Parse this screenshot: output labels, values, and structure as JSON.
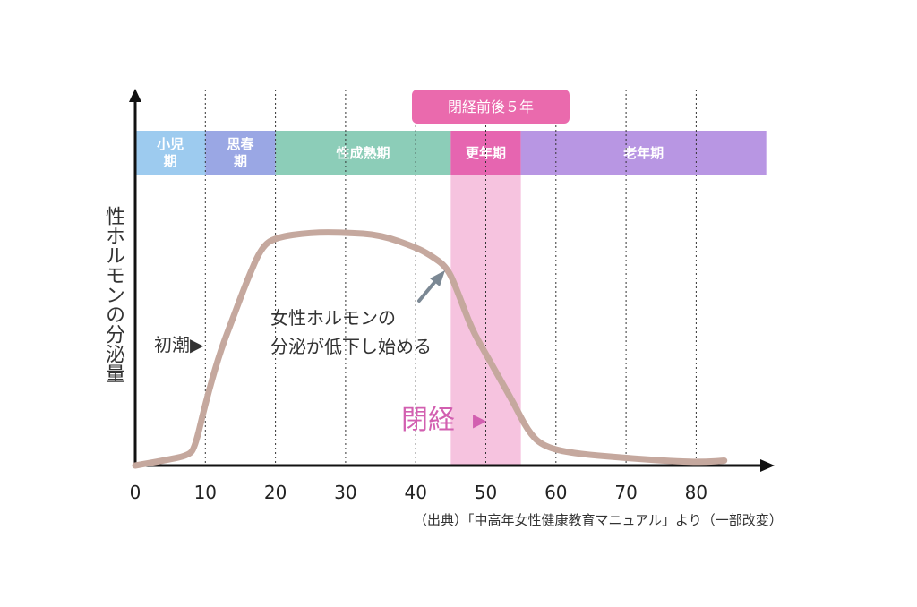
{
  "chart_data": {
    "type": "line",
    "ylabel": "性ホルモンの分泌量",
    "xticks": [
      0,
      10,
      20,
      30,
      40,
      50,
      60,
      70,
      80
    ],
    "xlim": [
      0,
      90
    ],
    "ylim": [
      0,
      100
    ],
    "grid": "vertical dotted",
    "series": [
      {
        "color": "#c5a89e",
        "x": [
          0,
          4,
          7.5,
          8.5,
          10,
          12,
          14,
          16,
          18,
          20,
          25,
          30,
          35,
          40,
          42,
          44.5,
          46,
          48,
          50,
          52,
          54,
          56,
          58,
          62,
          70,
          78,
          82,
          84
        ],
        "y": [
          0,
          2,
          4,
          7,
          25,
          45,
          60,
          75,
          88,
          92,
          94,
          94,
          93,
          88,
          85,
          80,
          70,
          55,
          45,
          35,
          25,
          14,
          8,
          5,
          3,
          1.5,
          1.5,
          2
        ]
      }
    ],
    "life_stages": [
      {
        "label": "小児期",
        "start": 0,
        "end": 10,
        "color": "#9dcbef"
      },
      {
        "label": "思春期",
        "start": 10,
        "end": 20,
        "color": "#9aa7e4"
      },
      {
        "label": "性成熟期",
        "start": 20,
        "end": 45,
        "color": "#8ccdb8"
      },
      {
        "label": "更年期",
        "start": 45,
        "end": 55,
        "color": "#e665b0"
      },
      {
        "label": "老年期",
        "start": 55,
        "end": 90,
        "color": "#b896e3"
      }
    ],
    "menopause_band": {
      "label": "閉経前後５年",
      "start": 45,
      "end": 55,
      "color": "#f6c3df",
      "label_color": "#ea6aad"
    },
    "annotations": {
      "menarche": "初潮▶",
      "decline_line1": "女性ホルモンの",
      "decline_line2": "分泌が低下し始める",
      "menopause": "閉経",
      "menopause_arrow": "▶"
    }
  },
  "source_note": "（出典）「中高年女性健康教育マニュアル」より（一部改変）"
}
